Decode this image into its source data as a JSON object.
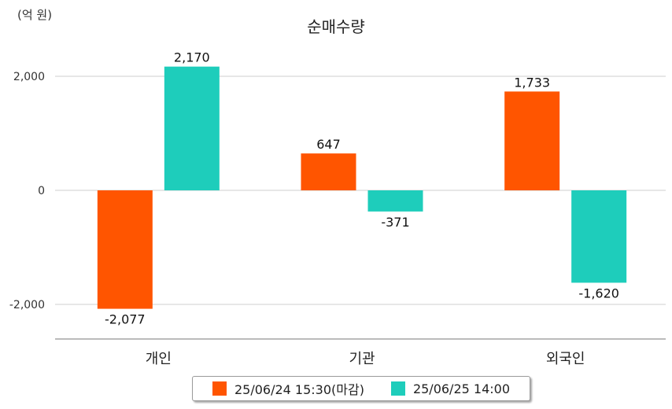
{
  "unit_label": "(억 원)",
  "chart_data": {
    "type": "bar",
    "title": "순매수량",
    "categories": [
      "개인",
      "기관",
      "외국인"
    ],
    "series": [
      {
        "name": "25/06/24 15:30(마감)",
        "color": "#ff5500",
        "values": [
          -2077,
          647,
          1733
        ],
        "labels": [
          "-2,077",
          "647",
          "1,733"
        ]
      },
      {
        "name": "25/06/25 14:00",
        "color": "#1ecdbb",
        "values": [
          2170,
          -371,
          -1620
        ],
        "labels": [
          "2,170",
          "-371",
          "-1,620"
        ]
      }
    ],
    "yticks": [
      2000,
      0,
      -2000
    ],
    "ytick_labels": [
      "2,000",
      "0",
      "-2,000"
    ],
    "ylim": [
      -2600,
      2250
    ],
    "grid": true,
    "legend_position": "bottom"
  }
}
